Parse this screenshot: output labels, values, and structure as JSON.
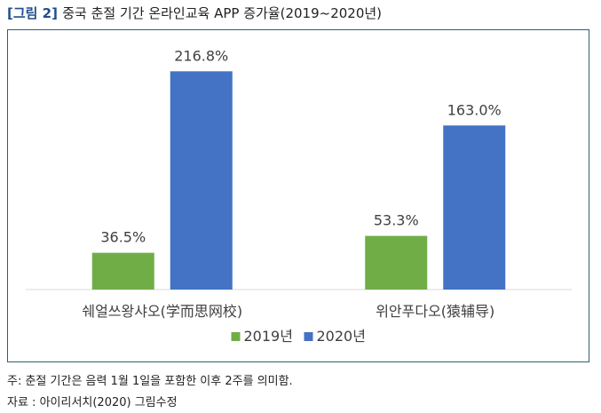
{
  "figure": {
    "tag": "[그림 2]",
    "title": "중국 춘절 기간 온라인교육 APP 증가율(2019~2020년)"
  },
  "chart_data": {
    "type": "bar",
    "categories": [
      "쉐얼쓰왕샤오(学而思网校)",
      "위안푸다오(猿辅导)"
    ],
    "series": [
      {
        "name": "2019년",
        "values": [
          36.5,
          53.3
        ],
        "labels": [
          "36.5%",
          "53.3%"
        ],
        "color": "#70ad47"
      },
      {
        "name": "2020년",
        "values": [
          216.8,
          163.0
        ],
        "labels": [
          "216.8%",
          "163.0%"
        ],
        "color": "#4472c4"
      }
    ],
    "ylim": [
      0,
      240
    ],
    "grid": false,
    "legend": "bottom"
  },
  "notes": {
    "note": "주: 춘절 기간은 음력 1월 1일을 포함한 이후 2주를 의미함.",
    "source": "자료 : 아이리서치(2020) 그림수정"
  }
}
